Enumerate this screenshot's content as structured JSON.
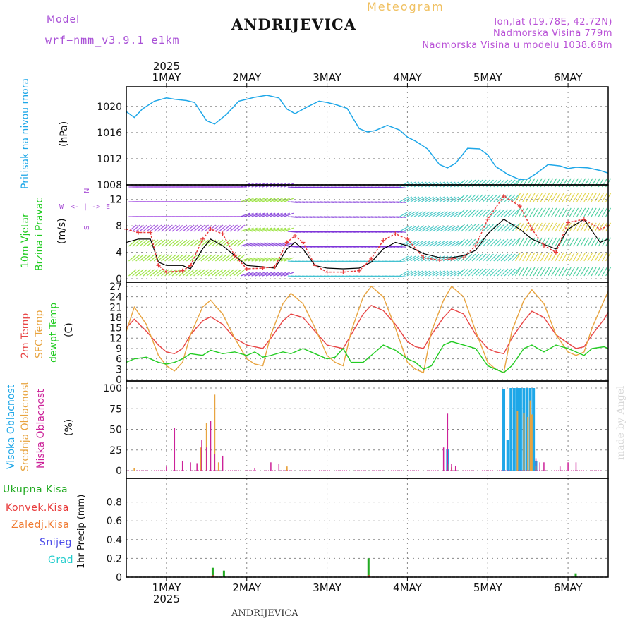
{
  "header": {
    "model_label": "Model",
    "model_name": "wrf−nmm_v3.9.1 e1km",
    "title": "ANDRIJEVICA",
    "subtitle": "Meteogram",
    "coords": "lon,lat (19.78E, 42.72N)",
    "elevation": "Nadmorska Visina 779m",
    "model_elevation": "Nadmorska Visina u modelu 1038.68m"
  },
  "footer": {
    "station": "ANDRIJEVICA"
  },
  "watermark": "made by Angel",
  "compass": {
    "n": "N",
    "w": "W",
    "e": "E",
    "s": "S",
    "arrows": "<- | ->"
  },
  "axes": {
    "year_top": "2025",
    "year_bottom": "2025",
    "days": [
      "1MAY",
      "2MAY",
      "3MAY",
      "4MAY",
      "5MAY",
      "6MAY"
    ]
  },
  "panel_labels": {
    "pressure": [
      "Pritisak na nivou mora"
    ],
    "pressure_unit": "(hPa)",
    "wind": [
      "10m Vjetar",
      "Brzina i Pravac"
    ],
    "wind_unit": "(m/s)",
    "temp": [
      "2m Temp",
      "SFC Temp",
      "dewpt Temp"
    ],
    "temp_unit": "(C)",
    "cloud": [
      "Visoka Oblacnost",
      "Srednja Oblacnost",
      "Niska Oblacnost"
    ],
    "cloud_unit": "(%)",
    "precip": [
      "Ukupna Kisa",
      "Konvek.Kisa",
      "Zaledj.Kisa",
      "Snijeg",
      "Grad"
    ],
    "precip_unit": "1hr Precip (mm)"
  },
  "colors": {
    "pressure": "#1ea7e8",
    "wind_speed": "#000000",
    "wind_gust": "#e83a3a",
    "temp_2m": "#e84545",
    "temp_sfc": "#e8a440",
    "temp_dew": "#22cc22",
    "cloud_high": "#1ea7e8",
    "cloud_mid": "#e8a440",
    "cloud_low": "#cc2299",
    "rain_total": "#22aa22",
    "rain_conv": "#e83a3a",
    "rain_frozen": "#f07a30",
    "snow": "#4a4ae8",
    "hail": "#22cccc",
    "violet_text": "#a84fd6",
    "gridline": "#888888"
  },
  "chart_data": [
    {
      "type": "line",
      "name": "pressure",
      "ylabel": "(hPa)",
      "ylim": [
        1008,
        1023
      ],
      "yticks": [
        1008,
        1012,
        1016,
        1020
      ],
      "x_unit": "days from 1MAY 00",
      "x_range": [
        -0.5,
        5.5
      ],
      "grid": true,
      "series": [
        {
          "name": "Pritisak na nivou mora",
          "color_key": "pressure",
          "x": [
            -0.5,
            -0.4,
            -0.3,
            -0.15,
            0,
            0.1,
            0.25,
            0.35,
            0.5,
            0.6,
            0.75,
            0.9,
            1.0,
            1.1,
            1.25,
            1.4,
            1.5,
            1.6,
            1.75,
            1.9,
            2.0,
            2.1,
            2.25,
            2.4,
            2.5,
            2.6,
            2.75,
            2.9,
            3.0,
            3.1,
            3.25,
            3.4,
            3.5,
            3.6,
            3.75,
            3.9,
            4.0,
            4.1,
            4.25,
            4.4,
            4.5,
            4.6,
            4.75,
            4.9,
            5.0,
            5.1,
            5.25,
            5.4,
            5.5
          ],
          "y": [
            1019.2,
            1018.3,
            1019.6,
            1020.8,
            1021.3,
            1021.1,
            1020.9,
            1020.6,
            1017.8,
            1017.3,
            1018.8,
            1020.8,
            1021.1,
            1021.4,
            1021.7,
            1021.3,
            1019.6,
            1018.9,
            1019.9,
            1020.8,
            1020.6,
            1020.3,
            1019.7,
            1016.6,
            1016.1,
            1016.3,
            1017.1,
            1016.4,
            1015.3,
            1014.7,
            1013.5,
            1011.1,
            1010.6,
            1011.3,
            1013.6,
            1013.5,
            1012.6,
            1010.8,
            1009.6,
            1008.8,
            1008.9,
            1009.7,
            1011.1,
            1010.9,
            1010.5,
            1010.7,
            1010.6,
            1010.2,
            1009.8
          ]
        }
      ]
    },
    {
      "type": "line",
      "name": "wind",
      "ylabel": "(m/s)",
      "ylim": [
        0,
        14
      ],
      "yticks": [
        0,
        4,
        8,
        12
      ],
      "x_range": [
        -0.5,
        5.5
      ],
      "grid": true,
      "series": [
        {
          "name": "speed",
          "color_key": "wind_speed",
          "x": [
            -0.5,
            -0.35,
            -0.2,
            -0.1,
            0,
            0.2,
            0.3,
            0.45,
            0.55,
            0.7,
            0.85,
            1.0,
            1.2,
            1.35,
            1.5,
            1.6,
            1.7,
            1.85,
            2.0,
            2.2,
            2.4,
            2.55,
            2.7,
            2.85,
            3.0,
            3.2,
            3.4,
            3.55,
            3.7,
            3.85,
            4.0,
            4.2,
            4.4,
            4.55,
            4.7,
            4.85,
            5.0,
            5.2,
            5.4,
            5.5
          ],
          "y": [
            5.5,
            6.0,
            6.0,
            2.5,
            2.0,
            2.0,
            1.5,
            4.5,
            6.0,
            5.0,
            3.5,
            2.0,
            1.8,
            1.6,
            4.5,
            5.5,
            4.5,
            2.0,
            1.6,
            1.5,
            1.6,
            2.5,
            4.5,
            5.5,
            5.0,
            3.8,
            3.2,
            3.2,
            3.5,
            4.3,
            6.8,
            9.0,
            7.5,
            6.0,
            5.2,
            4.5,
            7.5,
            9.0,
            5.5,
            6.0
          ]
        },
        {
          "name": "gust",
          "color_key": "wind_gust",
          "x": [
            -0.5,
            -0.35,
            -0.2,
            -0.1,
            0,
            0.2,
            0.3,
            0.45,
            0.55,
            0.7,
            0.85,
            1.0,
            1.2,
            1.35,
            1.5,
            1.6,
            1.7,
            1.85,
            2.0,
            2.2,
            2.4,
            2.55,
            2.7,
            2.85,
            3.0,
            3.2,
            3.4,
            3.55,
            3.7,
            3.85,
            4.0,
            4.2,
            4.4,
            4.55,
            4.7,
            4.85,
            5.0,
            5.2,
            5.4,
            5.5
          ],
          "y": [
            7.5,
            7.0,
            7.0,
            2.0,
            1.0,
            1.2,
            2.0,
            6.0,
            7.5,
            6.8,
            3.5,
            1.5,
            1.6,
            1.8,
            5.5,
            6.5,
            5.5,
            2.0,
            1.0,
            1.0,
            1.2,
            3.0,
            5.8,
            6.8,
            6.0,
            3.2,
            2.8,
            3.0,
            3.2,
            5.0,
            9.0,
            12.5,
            11.0,
            7.5,
            5.0,
            4.0,
            8.5,
            9.0,
            7.5,
            8.0
          ]
        }
      ]
    },
    {
      "type": "line",
      "name": "temperature",
      "ylabel": "(C)",
      "ylim": [
        0,
        28
      ],
      "yticks": [
        0,
        3,
        6,
        9,
        12,
        15,
        18,
        21,
        24,
        27
      ],
      "x_range": [
        -0.5,
        5.5
      ],
      "grid": true,
      "series": [
        {
          "name": "2m Temp",
          "color_key": "temp_2m",
          "x": [
            -0.5,
            -0.4,
            -0.25,
            -0.1,
            0,
            0.1,
            0.2,
            0.3,
            0.45,
            0.55,
            0.7,
            0.85,
            1.0,
            1.1,
            1.2,
            1.3,
            1.45,
            1.55,
            1.7,
            1.85,
            2.0,
            2.1,
            2.2,
            2.3,
            2.45,
            2.55,
            2.7,
            2.85,
            3.0,
            3.1,
            3.2,
            3.3,
            3.45,
            3.55,
            3.7,
            3.85,
            4.0,
            4.1,
            4.2,
            4.3,
            4.45,
            4.55,
            4.7,
            4.85,
            5.0,
            5.1,
            5.2,
            5.3,
            5.45,
            5.5
          ],
          "y": [
            15,
            17.5,
            14,
            10,
            8,
            7.5,
            9,
            13,
            17,
            18.2,
            16,
            12,
            10,
            9.5,
            9,
            12,
            17,
            19,
            18,
            14,
            10,
            9.5,
            9,
            13,
            19,
            21.5,
            20,
            16,
            11,
            9.5,
            9,
            13,
            18,
            20.5,
            19,
            13,
            9,
            8,
            7.5,
            12,
            17,
            19.8,
            18,
            13,
            10.5,
            9,
            9.5,
            13,
            17.5,
            19.5
          ]
        },
        {
          "name": "SFC Temp",
          "color_key": "temp_sfc",
          "x": [
            -0.5,
            -0.4,
            -0.25,
            -0.1,
            0,
            0.1,
            0.2,
            0.3,
            0.45,
            0.55,
            0.7,
            0.85,
            1.0,
            1.1,
            1.2,
            1.3,
            1.45,
            1.55,
            1.7,
            1.85,
            2.0,
            2.1,
            2.2,
            2.3,
            2.45,
            2.55,
            2.7,
            2.85,
            3.0,
            3.1,
            3.2,
            3.3,
            3.45,
            3.55,
            3.7,
            3.85,
            4.0,
            4.1,
            4.2,
            4.3,
            4.45,
            4.55,
            4.7,
            4.85,
            5.0,
            5.1,
            5.2,
            5.3,
            5.45,
            5.5
          ],
          "y": [
            14,
            21,
            16,
            7,
            4,
            2.5,
            5,
            13,
            21,
            23,
            19,
            12,
            6,
            4.5,
            4,
            13,
            22,
            25,
            22,
            15,
            7,
            5,
            4,
            14,
            24,
            27,
            24,
            15,
            5,
            3,
            2,
            14,
            23,
            27,
            24,
            14,
            5,
            3,
            2,
            14,
            23,
            26,
            22,
            13,
            8,
            7,
            8,
            15,
            23,
            25.5
          ]
        },
        {
          "name": "dewpt Temp",
          "color_key": "temp_dew",
          "x": [
            -0.5,
            -0.4,
            -0.25,
            -0.1,
            0,
            0.1,
            0.2,
            0.3,
            0.45,
            0.55,
            0.7,
            0.85,
            1.0,
            1.1,
            1.2,
            1.3,
            1.45,
            1.55,
            1.7,
            1.85,
            2.0,
            2.1,
            2.2,
            2.3,
            2.45,
            2.55,
            2.7,
            2.85,
            3.0,
            3.1,
            3.2,
            3.3,
            3.45,
            3.55,
            3.7,
            3.85,
            4.0,
            4.1,
            4.2,
            4.3,
            4.45,
            4.55,
            4.7,
            4.85,
            5.0,
            5.1,
            5.2,
            5.3,
            5.45,
            5.5
          ],
          "y": [
            5,
            6,
            6.5,
            5,
            4.5,
            5,
            6,
            7.5,
            7,
            8.5,
            7.5,
            8,
            7,
            8,
            6.5,
            7,
            8,
            7.5,
            9,
            7.5,
            6,
            6.5,
            9,
            5,
            5,
            7,
            10,
            8.5,
            6,
            5,
            3,
            4,
            10,
            11,
            10,
            9,
            4,
            3,
            2,
            4,
            9,
            10,
            8,
            10,
            9,
            8,
            7,
            9,
            9.5,
            9
          ]
        }
      ]
    },
    {
      "type": "bar",
      "name": "cloud_cover",
      "ylabel": "(%)",
      "ylim": [
        0,
        100
      ],
      "yticks": [
        0,
        25,
        50,
        75,
        100
      ],
      "x_range": [
        -0.5,
        5.5
      ],
      "grid": true,
      "series": [
        {
          "name": "Visoka Oblacnost",
          "color_key": "cloud_high",
          "x": [
            3.5,
            4.2,
            4.25,
            4.29,
            4.33,
            4.37,
            4.41,
            4.45,
            4.49,
            4.53,
            4.57,
            4.6
          ],
          "y": [
            26,
            99,
            37,
            100,
            100,
            100,
            100,
            100,
            100,
            100,
            100,
            12
          ]
        },
        {
          "name": "Srednja Oblacnost",
          "color_key": "cloud_mid",
          "x": [
            -0.4,
            0.43,
            0.5,
            0.6,
            0.65,
            1.5,
            3.5,
            3.55,
            4.37,
            4.45,
            4.5,
            4.53,
            4.55,
            4.6
          ],
          "y": [
            3,
            28,
            58,
            92,
            10,
            5,
            8,
            4,
            72,
            70,
            65,
            85,
            68,
            6
          ]
        },
        {
          "name": "Niska Oblacnost",
          "color_key": "cloud_low",
          "x": [
            0.0,
            0.1,
            0.2,
            0.3,
            0.38,
            0.44,
            0.5,
            0.55,
            0.6,
            0.7,
            1.1,
            1.3,
            1.4,
            3.45,
            3.5,
            3.55,
            3.6,
            4.6,
            4.65,
            4.7,
            4.9,
            5.0,
            5.1
          ],
          "y": [
            5,
            52,
            12,
            10,
            9,
            37,
            28,
            60,
            20,
            18,
            3,
            10,
            8,
            28,
            69,
            8,
            6,
            15,
            10,
            10,
            5,
            10,
            10
          ]
        }
      ]
    },
    {
      "type": "bar",
      "name": "precipitation",
      "ylabel": "1hr Precip (mm)",
      "ylim": [
        0,
        1.0
      ],
      "yticks": [
        0,
        0.2,
        0.4,
        0.6,
        0.8
      ],
      "x_range": [
        -0.5,
        5.5
      ],
      "grid": true,
      "series": [
        {
          "name": "Ukupna Kisa",
          "color_key": "rain_total",
          "x": [
            0.58,
            0.72,
            2.52,
            5.1
          ],
          "y": [
            0.1,
            0.07,
            0.2,
            0.04
          ]
        },
        {
          "name": "Konvek.Kisa",
          "color_key": "rain_conv",
          "x": [
            0.59,
            2.53
          ],
          "y": [
            0.02,
            0.02
          ]
        }
      ]
    }
  ]
}
